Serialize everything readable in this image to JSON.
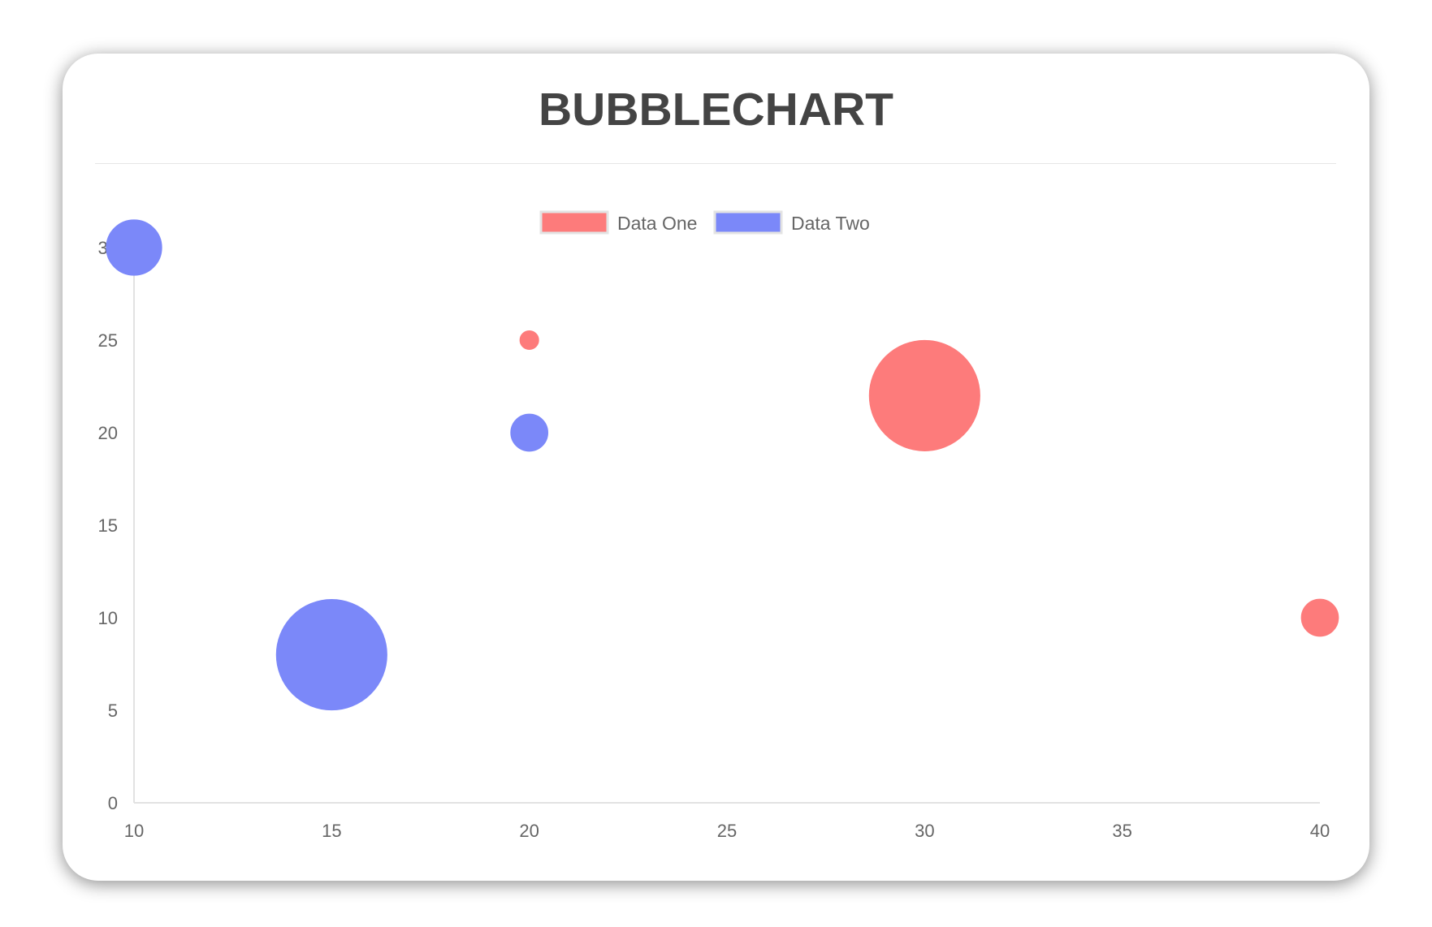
{
  "chart_data": {
    "type": "bubble",
    "title": "BUBBLECHART",
    "xlim": [
      10,
      40
    ],
    "ylim": [
      0,
      30
    ],
    "xticks": [
      "10",
      "15",
      "20",
      "25",
      "30",
      "35",
      "40"
    ],
    "yticks": [
      "0",
      "5",
      "10",
      "15",
      "20",
      "25",
      "30"
    ],
    "grid": false,
    "legend_position": "top",
    "series": [
      {
        "name": "Data One",
        "color": "#fd7b7b",
        "points": [
          {
            "x": 20,
            "y": 25,
            "r": 5
          },
          {
            "x": 30,
            "y": 22,
            "r": 30
          },
          {
            "x": 40,
            "y": 10,
            "r": 10
          }
        ]
      },
      {
        "name": "Data Two",
        "color": "#7b88f9",
        "points": [
          {
            "x": 10,
            "y": 30,
            "r": 15
          },
          {
            "x": 20,
            "y": 20,
            "r": 10
          },
          {
            "x": 15,
            "y": 8,
            "r": 30
          }
        ]
      }
    ]
  }
}
